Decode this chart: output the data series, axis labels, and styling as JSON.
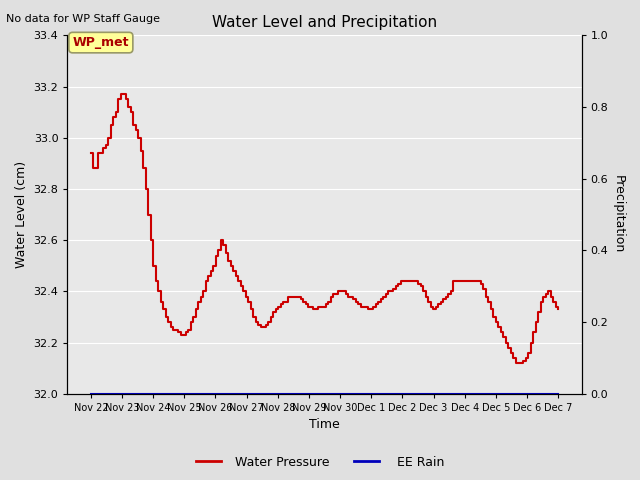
{
  "title": "Water Level and Precipitation",
  "top_left_text": "No data for WP Staff Gauge",
  "legend_label_box": "WP_met",
  "ylabel_left": "Water Level (cm)",
  "ylabel_right": "Precipitation",
  "xlabel": "Time",
  "ylim_left": [
    32.0,
    33.4
  ],
  "ylim_right": [
    0.0,
    1.0
  ],
  "yticks_left": [
    32.0,
    32.2,
    32.4,
    32.6,
    32.8,
    33.0,
    33.2,
    33.4
  ],
  "yticks_right": [
    0.0,
    0.2,
    0.4,
    0.6,
    0.8,
    1.0
  ],
  "xtick_labels": [
    "Nov 22",
    "Nov 23",
    "Nov 24",
    "Nov 25",
    "Nov 26",
    "Nov 27",
    "Nov 28",
    "Nov 29",
    "Nov 30",
    "Dec 1",
    "Dec 2",
    "Dec 3",
    "Dec 4",
    "Dec 5",
    "Dec 6",
    "Dec 7"
  ],
  "bg_color": "#e0e0e0",
  "plot_bg_color": "#e8e8e8",
  "line_color_wp": "#cc0000",
  "line_color_rain": "#0000bb",
  "legend_box_facecolor": "#ffff99",
  "legend_box_edgecolor": "#999966",
  "water_pressure": [
    32.94,
    32.88,
    32.88,
    32.94,
    32.94,
    32.96,
    32.97,
    33.0,
    33.05,
    33.08,
    33.1,
    33.15,
    33.17,
    33.17,
    33.15,
    33.12,
    33.1,
    33.05,
    33.03,
    33.0,
    32.95,
    32.88,
    32.8,
    32.7,
    32.6,
    32.5,
    32.44,
    32.4,
    32.36,
    32.33,
    32.3,
    32.28,
    32.26,
    32.25,
    32.25,
    32.24,
    32.23,
    32.23,
    32.24,
    32.25,
    32.28,
    32.3,
    32.33,
    32.36,
    32.38,
    32.4,
    32.44,
    32.46,
    32.48,
    32.5,
    32.54,
    32.56,
    32.6,
    32.58,
    32.55,
    32.52,
    32.5,
    32.48,
    32.46,
    32.44,
    32.42,
    32.4,
    32.38,
    32.36,
    32.33,
    32.3,
    32.28,
    32.27,
    32.26,
    32.26,
    32.27,
    32.28,
    32.3,
    32.32,
    32.33,
    32.34,
    32.35,
    32.36,
    32.36,
    32.38,
    32.38,
    32.38,
    32.38,
    32.38,
    32.37,
    32.36,
    32.35,
    32.34,
    32.34,
    32.33,
    32.33,
    32.34,
    32.34,
    32.34,
    32.35,
    32.36,
    32.38,
    32.39,
    32.39,
    32.4,
    32.4,
    32.4,
    32.39,
    32.38,
    32.38,
    32.37,
    32.36,
    32.35,
    32.34,
    32.34,
    32.34,
    32.33,
    32.33,
    32.34,
    32.35,
    32.36,
    32.37,
    32.38,
    32.39,
    32.4,
    32.4,
    32.41,
    32.42,
    32.43,
    32.44,
    32.44,
    32.44,
    32.44,
    32.44,
    32.44,
    32.44,
    32.43,
    32.42,
    32.4,
    32.38,
    32.36,
    32.34,
    32.33,
    32.34,
    32.35,
    32.36,
    32.37,
    32.38,
    32.39,
    32.4,
    32.44,
    32.44,
    32.44,
    32.44,
    32.44,
    32.44,
    32.44,
    32.44,
    32.44,
    32.44,
    32.44,
    32.43,
    32.41,
    32.38,
    32.36,
    32.33,
    32.3,
    32.28,
    32.26,
    32.24,
    32.22,
    32.2,
    32.18,
    32.16,
    32.14,
    32.12,
    32.12,
    32.12,
    32.13,
    32.14,
    32.16,
    32.2,
    32.24,
    32.28,
    32.32,
    32.36,
    32.38,
    32.39,
    32.4,
    32.38,
    32.36,
    32.34,
    32.33
  ],
  "rain_data": [
    0.0
  ]
}
